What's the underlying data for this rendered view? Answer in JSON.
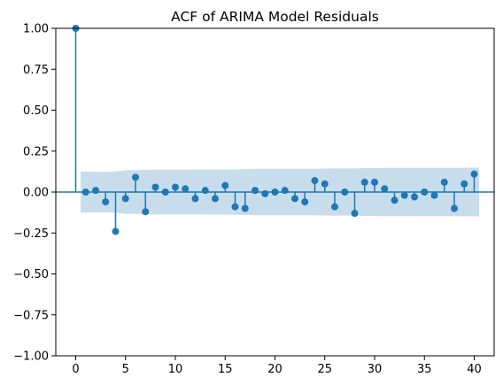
{
  "chart_data": {
    "type": "stem",
    "title": "ACF of ARIMA Model Residuals",
    "xlabel": "",
    "ylabel": "",
    "xlim": [
      -2,
      42
    ],
    "ylim": [
      -1.0,
      1.0
    ],
    "x_ticks": [
      0,
      5,
      10,
      15,
      20,
      25,
      30,
      35,
      40
    ],
    "y_ticks": [
      1.0,
      0.75,
      0.5,
      0.25,
      0.0,
      -0.25,
      -0.5,
      -0.75,
      -1.0
    ],
    "y_tick_labels": [
      "1.00",
      "0.75",
      "0.50",
      "0.25",
      "0.00",
      "−0.25",
      "−0.50",
      "−0.75",
      "−1.00"
    ],
    "grid": false,
    "lags": [
      0,
      1,
      2,
      3,
      4,
      5,
      6,
      7,
      8,
      9,
      10,
      11,
      12,
      13,
      14,
      15,
      16,
      17,
      18,
      19,
      20,
      21,
      22,
      23,
      24,
      25,
      26,
      27,
      28,
      29,
      30,
      31,
      32,
      33,
      34,
      35,
      36,
      37,
      38,
      39,
      40
    ],
    "acf": [
      1.0,
      0.0,
      0.01,
      -0.06,
      -0.24,
      -0.04,
      0.09,
      -0.12,
      0.03,
      0.0,
      0.03,
      0.02,
      -0.04,
      0.01,
      -0.04,
      0.04,
      -0.09,
      -0.1,
      0.01,
      -0.01,
      0.0,
      0.01,
      -0.04,
      -0.06,
      0.07,
      0.05,
      -0.09,
      0.0,
      -0.13,
      0.06,
      0.06,
      0.02,
      -0.05,
      -0.02,
      -0.03,
      0.0,
      -0.02,
      0.06,
      -0.1,
      0.05,
      0.11
    ],
    "confidence_band": {
      "lags": [
        1,
        2,
        3,
        4,
        5,
        6,
        7,
        8,
        9,
        10,
        11,
        12,
        13,
        14,
        15,
        16,
        17,
        18,
        19,
        20,
        21,
        22,
        23,
        24,
        25,
        26,
        27,
        28,
        29,
        30,
        31,
        32,
        33,
        34,
        35,
        36,
        37,
        38,
        39,
        40
      ],
      "half_width": [
        0.124,
        0.124,
        0.124,
        0.126,
        0.133,
        0.133,
        0.135,
        0.137,
        0.137,
        0.137,
        0.137,
        0.137,
        0.138,
        0.138,
        0.138,
        0.138,
        0.14,
        0.141,
        0.142,
        0.142,
        0.142,
        0.142,
        0.142,
        0.142,
        0.143,
        0.144,
        0.144,
        0.144,
        0.146,
        0.146,
        0.147,
        0.147,
        0.147,
        0.147,
        0.147,
        0.147,
        0.147,
        0.148,
        0.148,
        0.149
      ]
    },
    "colors": {
      "stem": "#1f77b4",
      "marker": "#1f77b4",
      "band": "#1f77b4",
      "zero_line": "#1f77b4",
      "axes": "#000000"
    }
  }
}
